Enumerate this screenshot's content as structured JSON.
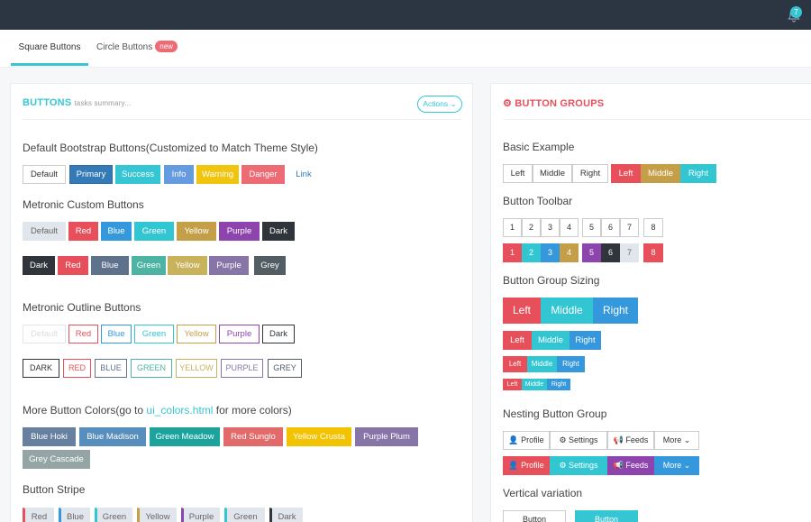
{
  "tabs": {
    "square": "Square Buttons",
    "circle": "Circle Buttons",
    "new_badge": "new"
  },
  "notification_count": "7",
  "left": {
    "title": "BUTTONS",
    "subtitle": "tasks summary...",
    "actions": "Actions",
    "sec1": "Default Bootstrap Buttons(Customized to Match Theme Style)",
    "bootstrap": [
      "Default",
      "Primary",
      "Success",
      "Info",
      "Warning",
      "Danger",
      "Link"
    ],
    "sec2": "Metronic Custom Buttons",
    "custom1": [
      "Default",
      "Red",
      "Blue",
      "Green",
      "Yellow",
      "Purple",
      "Dark"
    ],
    "custom2": [
      "Dark",
      "Red",
      "Blue",
      "Green",
      "Yellow",
      "Purple",
      "Grey"
    ],
    "sec3": "Metronic Outline Buttons",
    "outline1": [
      "Default",
      "Red",
      "Blue",
      "Green",
      "Yellow",
      "Purple",
      "Dark"
    ],
    "outline2": [
      "DARK",
      "RED",
      "BLUE",
      "GREEN",
      "YELLOW",
      "PURPLE",
      "GREY"
    ],
    "sec4_pre": "More Button Colors(go to ",
    "sec4_link": "ui_colors.html",
    "sec4_post": " for more colors)",
    "colors": [
      "Blue Hoki",
      "Blue Madison",
      "Green Meadow",
      "Red Sunglo",
      "Yellow Crusta",
      "Purple Plum",
      "Grey Cascade"
    ],
    "sec5": "Button Stripe",
    "stripe": [
      "Red",
      "Blue",
      "Green",
      "Yellow",
      "Purple",
      "Green",
      "Dark"
    ]
  },
  "right": {
    "title": "BUTTON GROUPS",
    "basic_h": "Basic Example",
    "basic": [
      "Left",
      "Middle",
      "Right"
    ],
    "toolbar_h": "Button Toolbar",
    "toolbar": [
      "1",
      "2",
      "3",
      "4",
      "5",
      "6",
      "7",
      "8"
    ],
    "sizing_h": "Button Group Sizing",
    "sizing": [
      "Left",
      "Middle",
      "Right"
    ],
    "nesting_h": "Nesting Button Group",
    "nesting": [
      "Profile",
      "Settings",
      "Feeds",
      "More"
    ],
    "vertical_h": "Vertical variation",
    "vertical": [
      "Button",
      "Button"
    ]
  },
  "colors": {
    "red": "#e7505a",
    "blue": "#3598dc",
    "green": "#32c5d2",
    "yellow": "#c49f47",
    "purple": "#8e44ad",
    "dark": "#2f353b",
    "teal": "#36c6d3"
  }
}
